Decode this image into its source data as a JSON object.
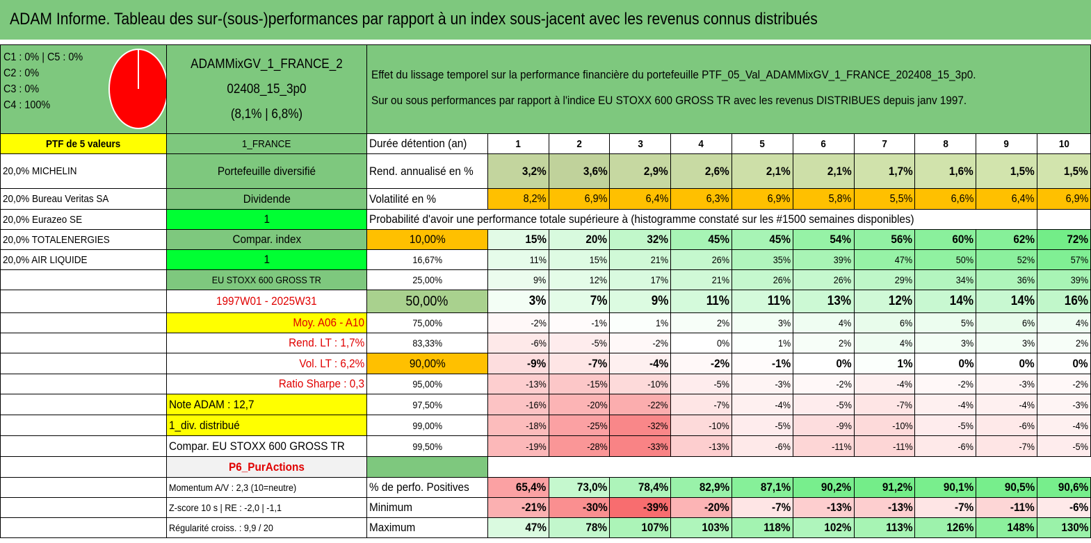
{
  "title": "ADAM Informe. Tableau des sur-(sous-)performances par rapport à un index sous-jacent avec les revenus connus distribués",
  "pie": {
    "legend": [
      "C1 : 0% | C5 : 0%",
      "C2 : 0%",
      "C3 : 0%",
      "C4 : 100%"
    ],
    "color": "#ff0000",
    "slices": [
      0,
      0,
      0,
      100,
      0
    ]
  },
  "portfolio": {
    "name_line1": "ADAMMixGV_1_FRANCE_2",
    "name_line2": "02408_15_3p0",
    "name_line3": "(8,1% | 6,8%)",
    "header": "PTF de 5 valeurs",
    "holdings": [
      "20,0% MICHELIN",
      "20,0% Bureau Veritas SA",
      "20,0% Eurazeo SE",
      "20,0% TOTALENERGIES",
      "20,0% AIR LIQUIDE"
    ]
  },
  "description": {
    "line1": "Effet du lissage temporel sur la performance financière du portefeuille PTF_05_Val_ADAMMixGV_1_FRANCE_202408_15_3p0.",
    "line2": "Sur ou sous performances par rapport à l'indice EU STOXX 600 GROSS TR avec les revenus DISTRIBUES depuis janv 1997."
  },
  "side": {
    "region": "1_FRANCE",
    "type": "Portefeuille diversifié",
    "dividend_label": "Dividende",
    "dividend_value": "1",
    "compar_label": "Compar. index",
    "compar_value": "1",
    "index_name": "EU STOXX 600 GROSS TR",
    "period": "1997W01 - 2025W31",
    "moy": "Moy. A06 - A10",
    "rend_lt": "Rend. LT : 1,7%",
    "vol_lt": "Vol. LT : 6,2%",
    "sharpe": "Ratio Sharpe : 0,3",
    "note": "Note ADAM : 12,7",
    "div": "1_div. distribué",
    "compar_full": "Compar. EU STOXX 600 GROSS TR",
    "strategy": "P6_PurActions",
    "momentum": "Momentum A/V : 2,3 (10=neutre)",
    "zscore": "Z-score 10 s | RE : -2,0 | -1,1",
    "regularite": "Régularité croiss. : 9,9 / 20"
  },
  "table": {
    "duration_label": "Durée détention (an)",
    "years": [
      "1",
      "2",
      "3",
      "4",
      "5",
      "6",
      "7",
      "8",
      "9",
      "10"
    ],
    "rend_label": "Rend. annualisé en %",
    "rend": [
      "3,2%",
      "3,6%",
      "2,9%",
      "2,6%",
      "2,1%",
      "2,1%",
      "1,7%",
      "1,6%",
      "1,5%",
      "1,5%"
    ],
    "vol_label": "Volatilité en %",
    "vol": [
      "8,2%",
      "6,9%",
      "6,4%",
      "6,3%",
      "6,9%",
      "5,8%",
      "5,5%",
      "6,6%",
      "6,4%",
      "6,9%"
    ],
    "prob_header": "Probabilité d'avoir une performance totale supérieure à (histogramme constaté sur les #1500 semaines disponibles)",
    "quantiles": [
      {
        "label": "10,00%",
        "values": [
          "15%",
          "20%",
          "32%",
          "45%",
          "45%",
          "54%",
          "56%",
          "60%",
          "62%",
          "72%"
        ]
      },
      {
        "label": "16,67%",
        "values": [
          "11%",
          "15%",
          "21%",
          "26%",
          "35%",
          "39%",
          "47%",
          "50%",
          "52%",
          "57%"
        ]
      },
      {
        "label": "25,00%",
        "values": [
          "9%",
          "12%",
          "17%",
          "21%",
          "26%",
          "26%",
          "29%",
          "34%",
          "36%",
          "39%"
        ]
      },
      {
        "label": "50,00%",
        "values": [
          "3%",
          "7%",
          "9%",
          "11%",
          "11%",
          "13%",
          "12%",
          "14%",
          "14%",
          "16%"
        ]
      },
      {
        "label": "75,00%",
        "values": [
          "-2%",
          "-1%",
          "1%",
          "2%",
          "3%",
          "4%",
          "6%",
          "5%",
          "6%",
          "4%"
        ]
      },
      {
        "label": "83,33%",
        "values": [
          "-6%",
          "-5%",
          "-2%",
          "0%",
          "1%",
          "2%",
          "4%",
          "3%",
          "3%",
          "2%"
        ]
      },
      {
        "label": "90,00%",
        "values": [
          "-9%",
          "-7%",
          "-4%",
          "-2%",
          "-1%",
          "0%",
          "1%",
          "0%",
          "0%",
          "0%"
        ]
      },
      {
        "label": "95,00%",
        "values": [
          "-13%",
          "-15%",
          "-10%",
          "-5%",
          "-3%",
          "-2%",
          "-4%",
          "-2%",
          "-3%",
          "-2%"
        ]
      },
      {
        "label": "97,50%",
        "values": [
          "-16%",
          "-20%",
          "-22%",
          "-7%",
          "-4%",
          "-5%",
          "-7%",
          "-4%",
          "-4%",
          "-3%"
        ]
      },
      {
        "label": "99,00%",
        "values": [
          "-18%",
          "-25%",
          "-32%",
          "-10%",
          "-5%",
          "-9%",
          "-10%",
          "-5%",
          "-6%",
          "-4%"
        ]
      },
      {
        "label": "99,50%",
        "values": [
          "-19%",
          "-28%",
          "-33%",
          "-13%",
          "-6%",
          "-11%",
          "-11%",
          "-6%",
          "-7%",
          "-5%"
        ]
      }
    ],
    "pos_label": "% de perfo. Positives",
    "pos": [
      "65,4%",
      "73,0%",
      "78,4%",
      "82,9%",
      "87,1%",
      "90,2%",
      "91,2%",
      "90,1%",
      "90,5%",
      "90,6%"
    ],
    "min_label": "Minimum",
    "min": [
      "-21%",
      "-30%",
      "-39%",
      "-20%",
      "-7%",
      "-13%",
      "-13%",
      "-7%",
      "-11%",
      "-6%"
    ],
    "max_label": "Maximum",
    "max": [
      "47%",
      "78%",
      "107%",
      "103%",
      "118%",
      "102%",
      "113%",
      "126%",
      "148%",
      "130%"
    ]
  },
  "colors": {
    "header_green": "#7ec87e",
    "highlight_yellow": "#ffff00",
    "bright_green": "#00ff33",
    "orange": "#ffc000",
    "red_text": "#e00000"
  }
}
